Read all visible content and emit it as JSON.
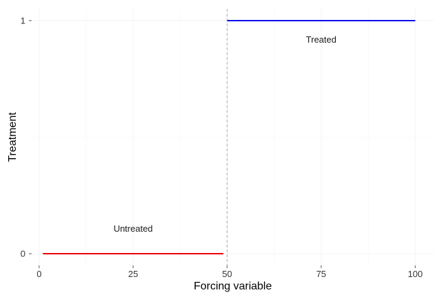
{
  "chart_data": {
    "type": "line",
    "xlabel": "Forcing variable",
    "ylabel": "Treatment",
    "xlim": [
      -2,
      105
    ],
    "ylim": [
      -0.05,
      1.05
    ],
    "x_ticks": [
      0,
      25,
      50,
      75,
      100
    ],
    "x_tick_labels": [
      "0",
      "25",
      "50",
      "75",
      "100"
    ],
    "y_ticks": [
      0,
      1
    ],
    "y_tick_labels": [
      "0",
      "1"
    ],
    "x_minor_ticks": [
      12.5,
      37.5,
      62.5,
      87.5
    ],
    "y_minor_ticks": [
      0.5
    ],
    "grid": true,
    "cutoff": 50,
    "series": [
      {
        "x": [
          1,
          49
        ],
        "y": [
          0,
          0
        ],
        "color": "#ee0000"
      },
      {
        "x": [
          50,
          100
        ],
        "y": [
          1,
          1
        ],
        "color": "#0000ee"
      }
    ],
    "annotations": [
      {
        "text": "Untreated",
        "x": 25,
        "y": 0.095
      },
      {
        "text": "Treated",
        "x": 75,
        "y": 0.905
      }
    ],
    "colors": {
      "cutoff_line": "#aaaaaa",
      "untreated": "#ee0000",
      "treated": "#0000ee"
    }
  }
}
